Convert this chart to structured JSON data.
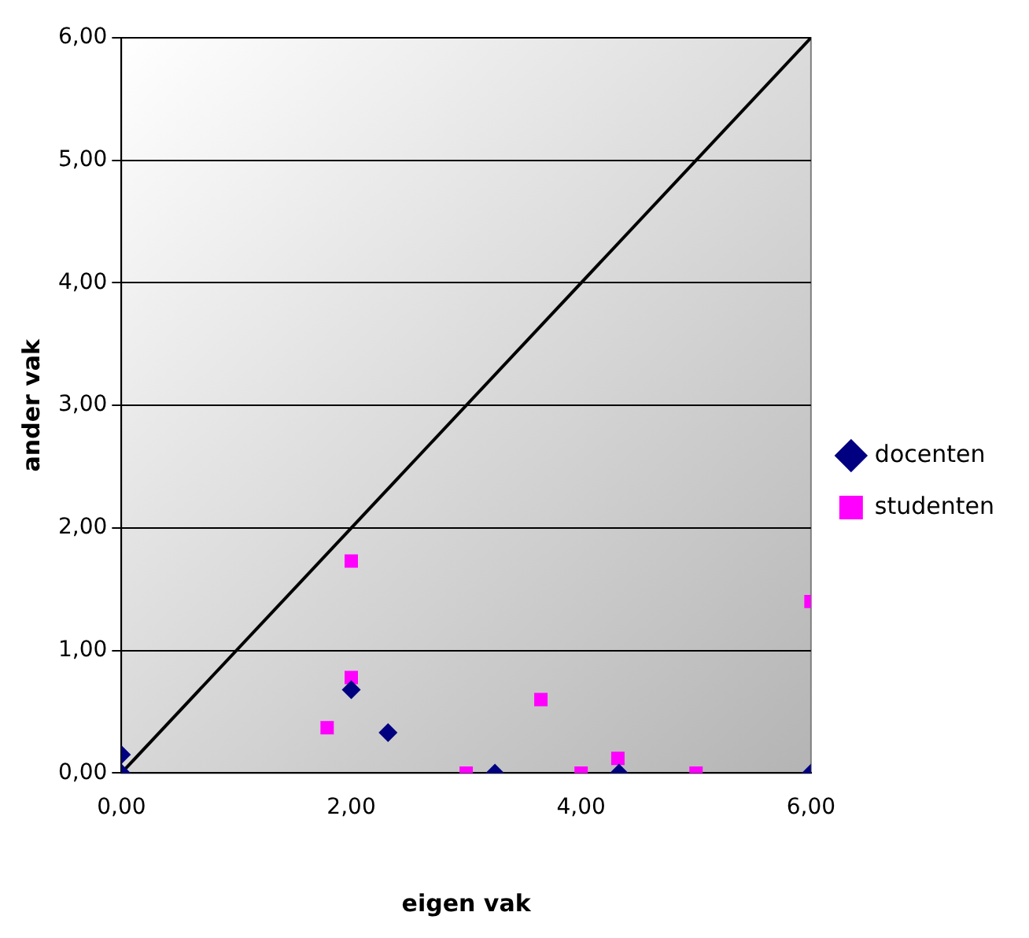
{
  "chart_data": {
    "type": "scatter",
    "xlabel": "eigen vak",
    "ylabel": "ander vak",
    "xlim": [
      0,
      6
    ],
    "ylim": [
      0,
      6
    ],
    "xticks": [
      {
        "value": 0,
        "label": "0,00"
      },
      {
        "value": 2,
        "label": "2,00"
      },
      {
        "value": 4,
        "label": "4,00"
      },
      {
        "value": 6,
        "label": "6,00"
      }
    ],
    "yticks": [
      {
        "value": 0,
        "label": "0,00"
      },
      {
        "value": 1,
        "label": "1,00"
      },
      {
        "value": 2,
        "label": "2,00"
      },
      {
        "value": 3,
        "label": "3,00"
      },
      {
        "value": 4,
        "label": "4,00"
      },
      {
        "value": 5,
        "label": "5,00"
      },
      {
        "value": 6,
        "label": "6,00"
      }
    ],
    "grid": "y",
    "legend": "right",
    "series": [
      {
        "name": "docenten",
        "color": "#000080",
        "marker": "diamond",
        "x": [
          0,
          0,
          2,
          2.32,
          3.25,
          4.33,
          6
        ],
        "values": [
          0,
          0.15,
          0.68,
          0.33,
          0,
          0,
          0
        ]
      },
      {
        "name": "studenten",
        "color": "#ff00ff",
        "marker": "square",
        "x": [
          1.79,
          2,
          2,
          3,
          3.65,
          4,
          4.32,
          5,
          6
        ],
        "values": [
          0.37,
          0.78,
          1.73,
          0,
          0.6,
          0,
          0.12,
          0,
          1.4
        ]
      },
      {
        "type": "line",
        "color": "#000000",
        "marker": "none",
        "line_style": "solid",
        "x": [
          0,
          6
        ],
        "values": [
          0,
          6
        ]
      }
    ]
  }
}
